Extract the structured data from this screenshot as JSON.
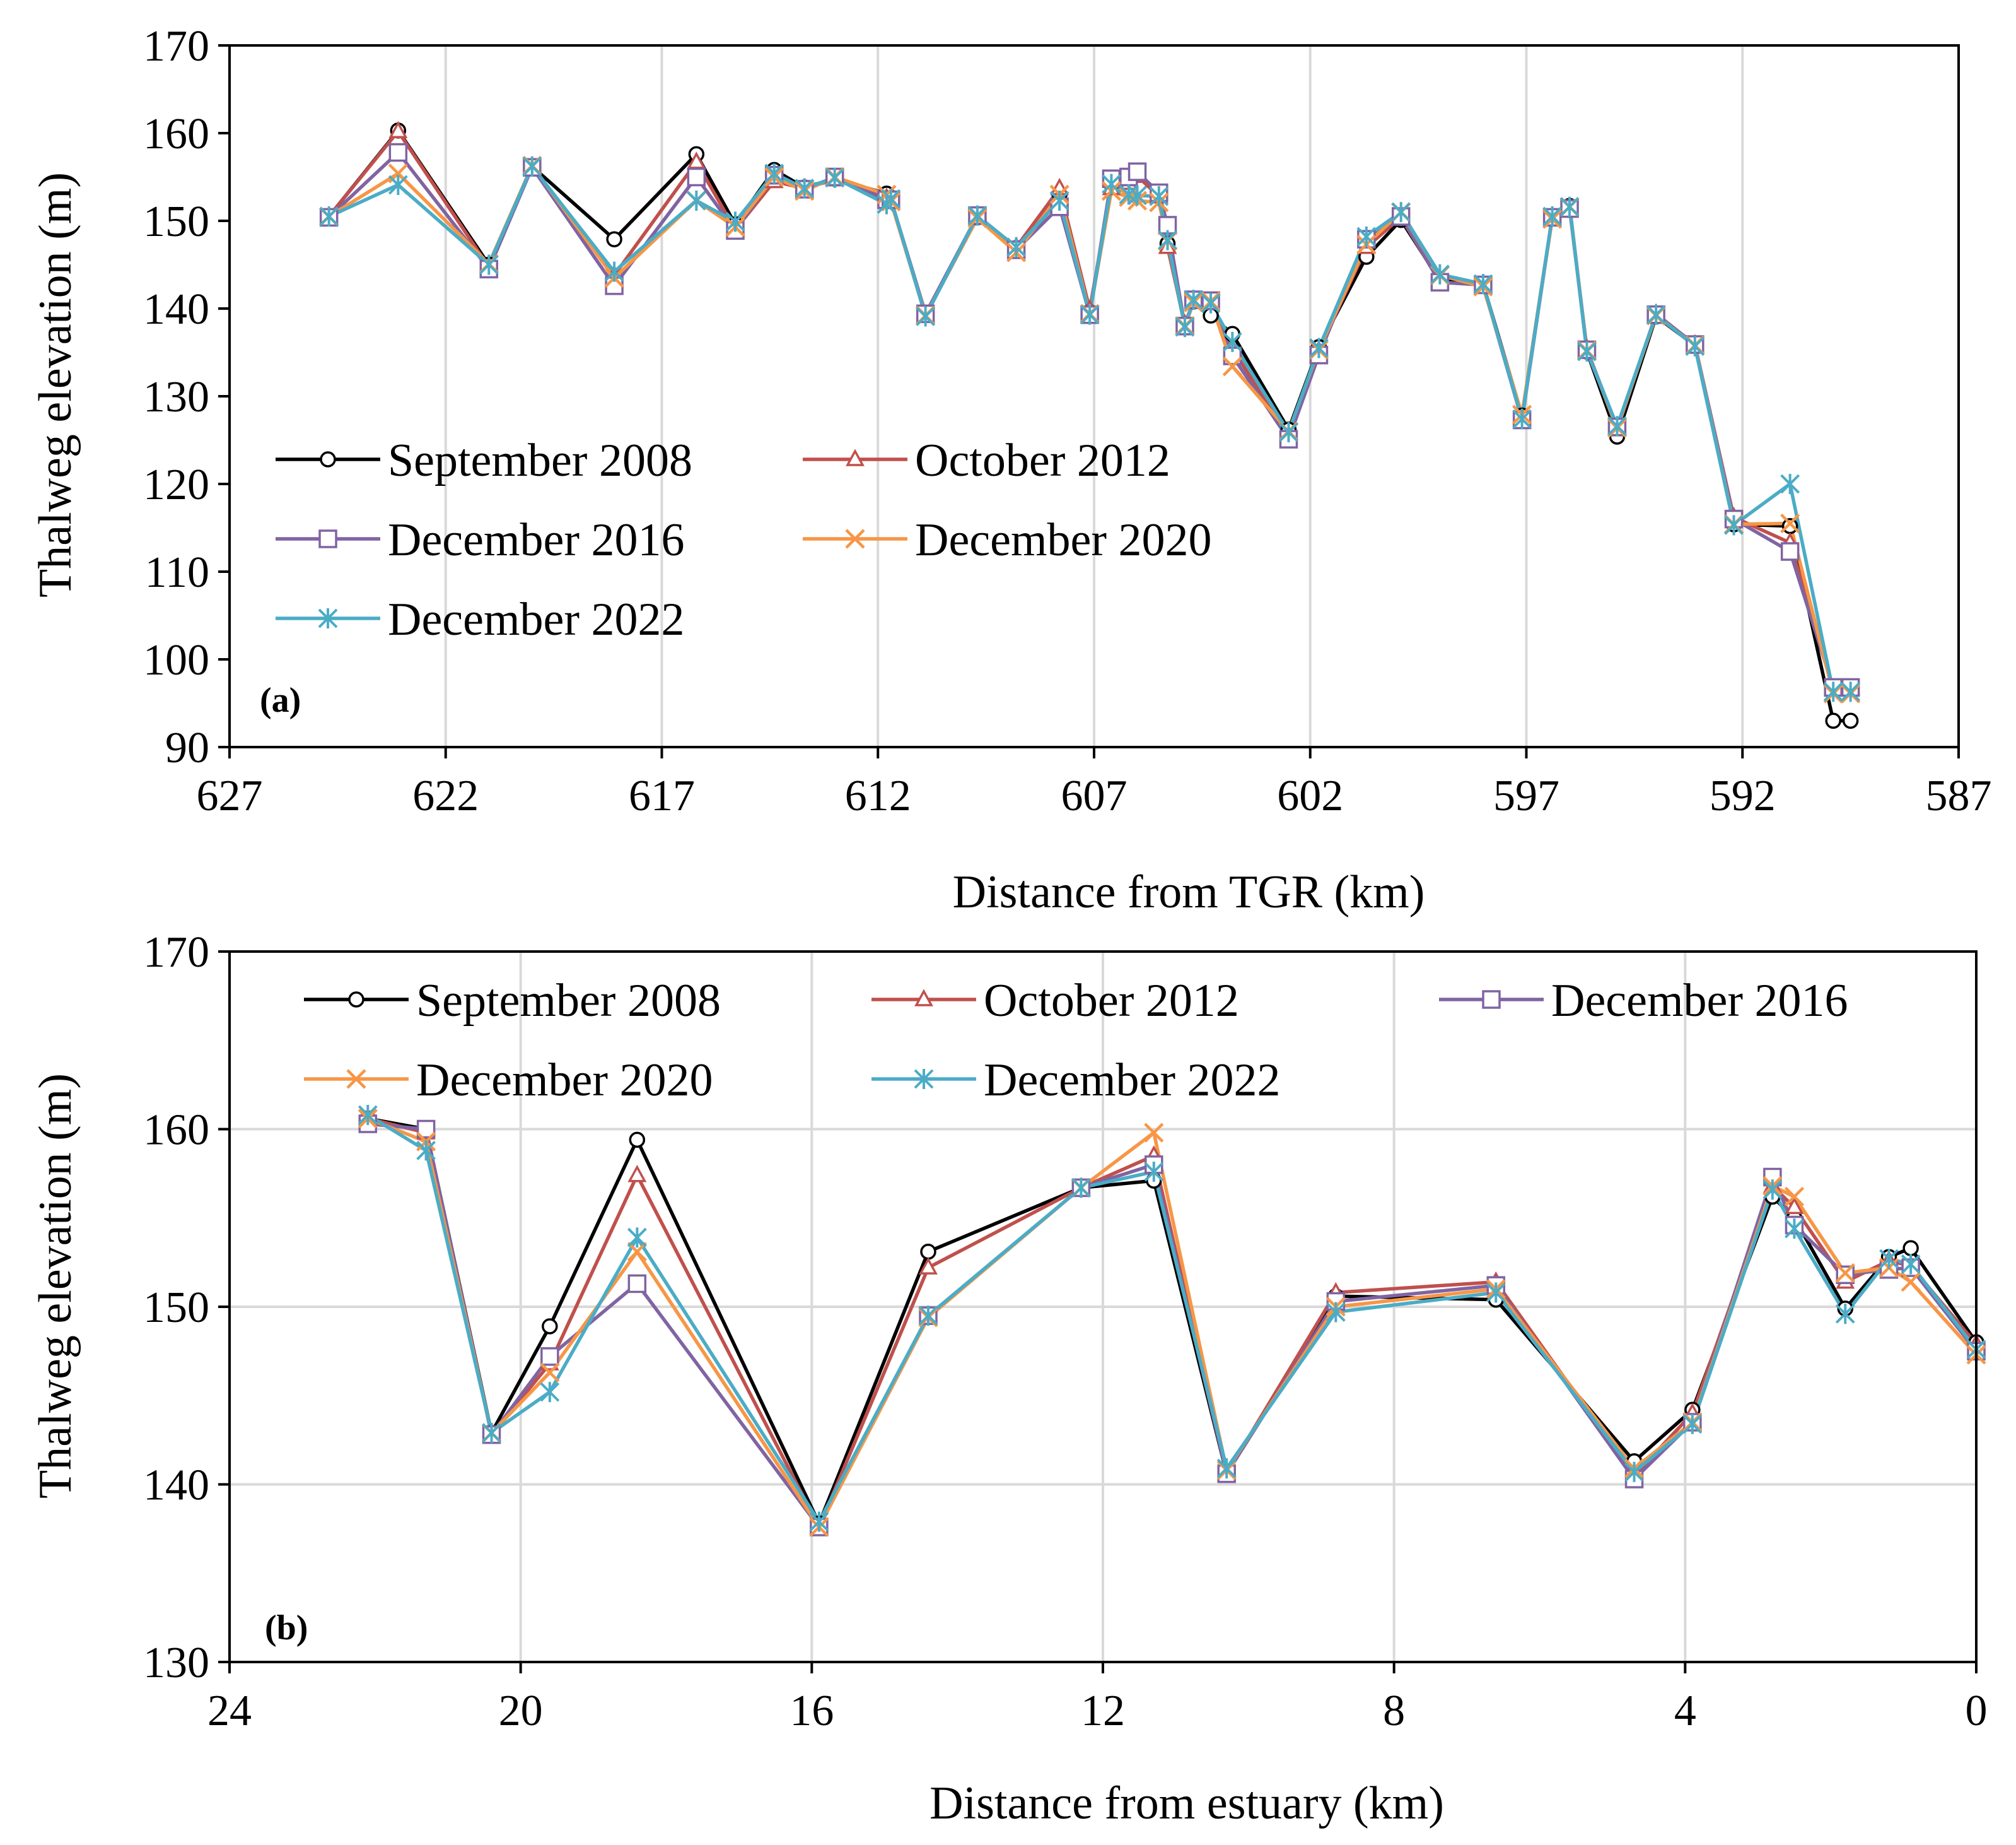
{
  "chart_data": [
    {
      "panel_label": "(a)",
      "type": "line",
      "xlabel": "Distance from TGR (km)",
      "ylabel": "Thalweg elevation (m)",
      "xlim": [
        627,
        587
      ],
      "ylim": [
        90,
        170
      ],
      "xticks": [
        627,
        622,
        617,
        612,
        607,
        602,
        597,
        592,
        587
      ],
      "yticks": [
        90,
        100,
        110,
        120,
        130,
        140,
        150,
        160,
        170
      ],
      "grid": "vertical",
      "legend_position": "left",
      "x": [
        624.7,
        623.1,
        621.0,
        620.0,
        618.1,
        616.2,
        615.3,
        614.4,
        613.7,
        613.0,
        611.8,
        611.7,
        610.9,
        609.7,
        608.8,
        607.8,
        607.1,
        606.6,
        606.2,
        606.0,
        605.5,
        605.3,
        604.9,
        604.7,
        604.3,
        603.8,
        602.5,
        601.8,
        600.7,
        599.9,
        599.0,
        598.0,
        597.1,
        596.4,
        596.0,
        595.6,
        594.9,
        594.0,
        593.1,
        592.2,
        590.9,
        589.9,
        589.5
      ],
      "series": [
        {
          "name": "September 2008",
          "color": "#000000",
          "marker": "circle",
          "values": [
            150.5,
            160.3,
            145.0,
            156.2,
            147.9,
            157.6,
            149.6,
            155.8,
            153.8,
            154.8,
            153.1,
            152.4,
            139.4,
            150.4,
            146.9,
            153.0,
            139.6,
            154.2,
            154.6,
            155.4,
            153.1,
            147.4,
            138.0,
            140.8,
            139.2,
            137.1,
            126.2,
            135.6,
            145.9,
            150.1,
            143.2,
            142.8,
            127.8,
            150.4,
            151.7,
            135.1,
            125.4,
            139.1,
            135.8,
            115.4,
            115.2,
            93.0,
            93.0
          ]
        },
        {
          "name": "October 2012",
          "color": "#c0504d",
          "marker": "triangle",
          "values": [
            150.5,
            160.2,
            144.7,
            156.2,
            143.8,
            156.7,
            149.0,
            154.5,
            153.7,
            154.7,
            152.6,
            152.4,
            139.2,
            150.4,
            147.0,
            153.7,
            139.9,
            153.7,
            154.3,
            155.1,
            152.8,
            147.0,
            138.2,
            140.9,
            140.6,
            135.4,
            125.5,
            135.2,
            147.0,
            150.4,
            143.0,
            142.7,
            127.5,
            150.5,
            151.5,
            135.4,
            126.2,
            139.4,
            135.9,
            116.2,
            113.3,
            96.6,
            96.6
          ]
        },
        {
          "name": "December 2016",
          "color": "#8064a2",
          "marker": "square",
          "values": [
            150.4,
            157.8,
            144.5,
            156.1,
            142.6,
            155.0,
            148.9,
            155.2,
            153.6,
            155.0,
            152.4,
            152.4,
            139.4,
            150.6,
            146.7,
            151.6,
            139.3,
            154.8,
            155.0,
            155.6,
            153.2,
            149.5,
            138.0,
            141.0,
            140.9,
            134.6,
            125.1,
            134.7,
            147.9,
            150.5,
            143.0,
            142.7,
            127.3,
            150.4,
            151.4,
            135.3,
            126.5,
            139.3,
            135.9,
            116.0,
            112.3,
            96.8,
            96.8
          ]
        },
        {
          "name": "December 2020",
          "color": "#f79646",
          "marker": "x",
          "values": [
            150.5,
            155.4,
            145.1,
            156.3,
            143.5,
            152.3,
            149.3,
            155.0,
            153.4,
            155.0,
            153.0,
            152.2,
            139.2,
            150.3,
            146.4,
            153.0,
            139.4,
            153.4,
            152.7,
            152.3,
            152.1,
            147.7,
            138.0,
            140.7,
            140.8,
            133.4,
            126.0,
            135.3,
            147.3,
            151.0,
            143.8,
            142.5,
            127.9,
            150.2,
            151.6,
            135.2,
            126.4,
            139.2,
            135.8,
            115.4,
            115.5,
            96.1,
            96.1
          ]
        },
        {
          "name": "December 2022",
          "color": "#4bacc6",
          "marker": "star",
          "values": [
            150.5,
            154.1,
            145.0,
            156.2,
            144.2,
            152.3,
            149.9,
            155.4,
            153.7,
            154.9,
            151.9,
            152.5,
            139.1,
            150.6,
            147.0,
            152.3,
            139.3,
            154.2,
            153.0,
            152.9,
            152.8,
            147.8,
            137.9,
            141.0,
            140.6,
            136.2,
            125.9,
            135.5,
            148.2,
            151.0,
            143.9,
            142.8,
            127.4,
            150.5,
            151.6,
            135.1,
            126.6,
            139.3,
            135.7,
            115.3,
            120.0,
            96.3,
            96.3
          ]
        }
      ]
    },
    {
      "panel_label": "(b)",
      "type": "line",
      "xlabel": "Distance from estuary (km)",
      "ylabel": "Thalweg elevation (m)",
      "xlim": [
        24,
        0
      ],
      "ylim": [
        130,
        170
      ],
      "xticks": [
        24,
        20,
        16,
        12,
        8,
        4,
        0
      ],
      "yticks": [
        130,
        140,
        150,
        160,
        170
      ],
      "grid": "both",
      "legend_position": "top",
      "x": [
        22.1,
        21.3,
        20.4,
        19.6,
        18.4,
        15.9,
        14.4,
        12.3,
        11.3,
        10.3,
        8.8,
        6.6,
        4.7,
        3.9,
        2.8,
        2.5,
        1.8,
        1.2,
        0.9,
        0
      ],
      "series": [
        {
          "name": "September 2008",
          "color": "#000000",
          "marker": "circle",
          "values": [
            160.6,
            160.0,
            142.9,
            148.9,
            159.4,
            137.8,
            153.1,
            156.7,
            157.1,
            140.6,
            150.6,
            150.4,
            141.3,
            144.2,
            156.2,
            155.0,
            149.9,
            152.8,
            153.3,
            148.0
          ]
        },
        {
          "name": "October 2012",
          "color": "#c0504d",
          "marker": "triangle",
          "values": [
            160.6,
            159.8,
            142.8,
            146.8,
            157.4,
            137.6,
            152.2,
            156.7,
            158.5,
            140.6,
            150.8,
            151.4,
            140.5,
            144.0,
            156.8,
            155.6,
            151.4,
            152.6,
            152.3,
            147.9
          ]
        },
        {
          "name": "December 2016",
          "color": "#8064a2",
          "marker": "square",
          "values": [
            160.3,
            160.0,
            142.8,
            147.2,
            151.3,
            137.6,
            149.5,
            156.7,
            158.0,
            140.6,
            150.3,
            151.2,
            140.3,
            143.5,
            157.3,
            154.6,
            151.8,
            152.1,
            152.2,
            147.5
          ]
        },
        {
          "name": "December 2020",
          "color": "#f79646",
          "marker": "x",
          "values": [
            160.6,
            159.3,
            142.9,
            146.3,
            153.1,
            137.6,
            149.4,
            156.7,
            159.8,
            140.8,
            150.0,
            151.0,
            140.9,
            143.5,
            156.8,
            156.2,
            151.9,
            152.2,
            151.4,
            147.3
          ]
        },
        {
          "name": "December 2022",
          "color": "#4bacc6",
          "marker": "star",
          "values": [
            160.8,
            158.8,
            142.9,
            145.2,
            153.9,
            137.9,
            149.5,
            156.7,
            157.6,
            140.9,
            149.7,
            150.8,
            140.7,
            143.4,
            156.6,
            154.4,
            149.6,
            152.7,
            152.4,
            147.6
          ]
        }
      ]
    }
  ]
}
